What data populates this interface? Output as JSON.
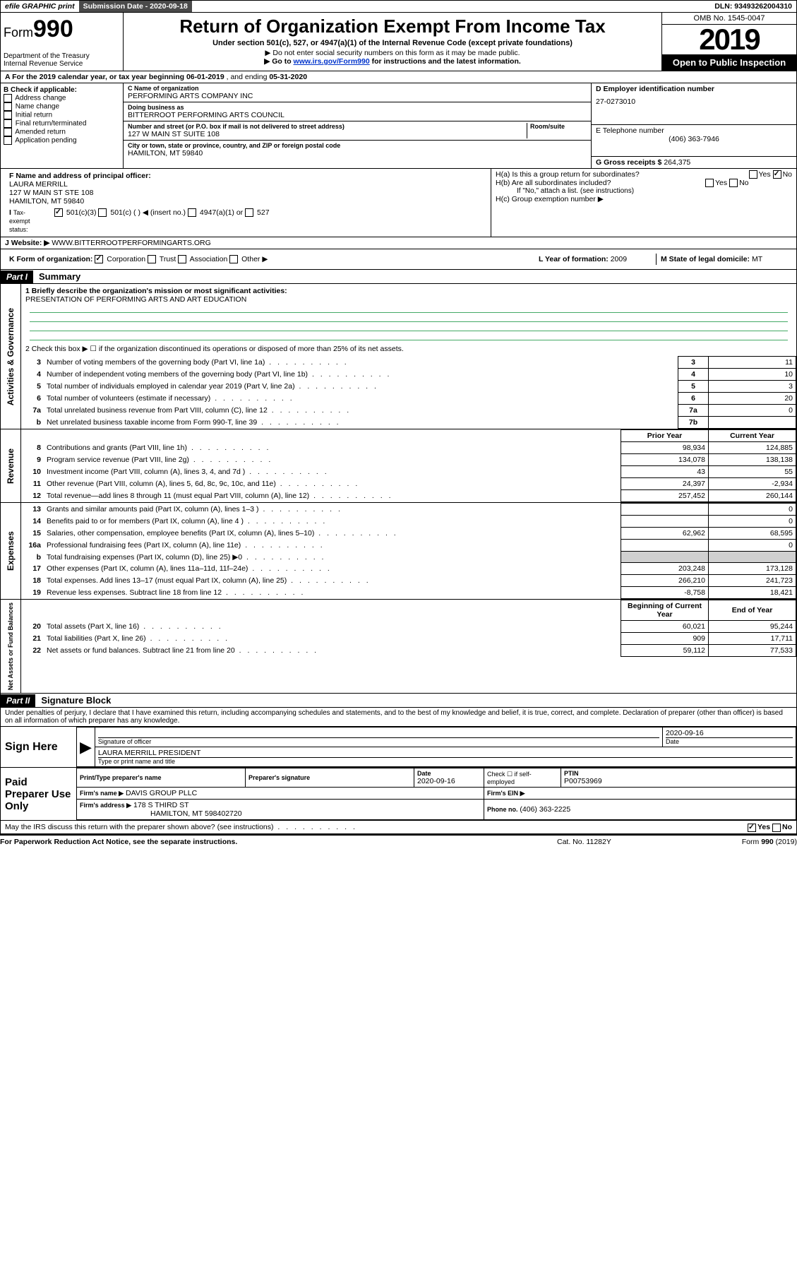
{
  "topbar": {
    "efile": "efile GRAPHIC print",
    "submission_label": "Submission Date - 2020-09-18",
    "dln": "DLN: 93493262004310"
  },
  "header": {
    "form_prefix": "Form",
    "form_num": "990",
    "title": "Return of Organization Exempt From Income Tax",
    "subtitle": "Under section 501(c), 527, or 4947(a)(1) of the Internal Revenue Code (except private foundations)",
    "note1": "▶ Do not enter social security numbers on this form as it may be made public.",
    "note2_pre": "▶ Go to ",
    "note2_link": "www.irs.gov/Form990",
    "note2_post": " for instructions and the latest information.",
    "dept": "Department of the Treasury\nInternal Revenue Service",
    "omb": "OMB No. 1545-0047",
    "year": "2019",
    "open_public": "Open to Public Inspection"
  },
  "row_a": {
    "text_pre": "A   For the 2019 calendar year, or tax year beginning ",
    "begin": "06-01-2019",
    "mid": "   , and ending ",
    "end": "05-31-2020"
  },
  "box_b": {
    "label": "B Check if applicable:",
    "items": [
      "Address change",
      "Name change",
      "Initial return",
      "Final return/terminated",
      "Amended return",
      "Application pending"
    ]
  },
  "box_c": {
    "name_label": "C Name of organization",
    "name": "PERFORMING ARTS COMPANY INC",
    "dba_label": "Doing business as",
    "dba": "BITTERROOT PERFORMING ARTS COUNCIL",
    "addr_label": "Number and street (or P.O. box if mail is not delivered to street address)",
    "room_label": "Room/suite",
    "addr": "127 W MAIN ST SUITE 108",
    "city_label": "City or town, state or province, country, and ZIP or foreign postal code",
    "city": "HAMILTON, MT  59840"
  },
  "box_d": {
    "label": "D Employer identification number",
    "value": "27-0273010"
  },
  "box_e": {
    "label": "E Telephone number",
    "value": "(406) 363-7946"
  },
  "box_g": {
    "label": "G Gross receipts $",
    "value": "264,375"
  },
  "box_f": {
    "label": "F  Name and address of principal officer:",
    "name": "LAURA MERRILL",
    "addr1": "127 W MAIN ST STE 108",
    "addr2": "HAMILTON, MT  59840"
  },
  "box_h": {
    "a": "H(a)  Is this a group return for subordinates?",
    "b": "H(b)  Are all subordinates included?",
    "b_note": "If \"No,\" attach a list. (see instructions)",
    "c": "H(c)  Group exemption number ▶"
  },
  "row_i": {
    "label": "I    Tax-exempt status:",
    "opts": [
      "501(c)(3)",
      "501(c) (  ) ◀ (insert no.)",
      "4947(a)(1) or",
      "527"
    ]
  },
  "row_j": {
    "label": "J   Website: ▶",
    "value": "WWW.BITTERROOTPERFORMINGARTS.ORG"
  },
  "row_k": {
    "label": "K Form of organization:",
    "opts": [
      "Corporation",
      "Trust",
      "Association",
      "Other ▶"
    ],
    "l_label": "L Year of formation:",
    "l_val": "2009",
    "m_label": "M State of legal domicile:",
    "m_val": "MT"
  },
  "part1": {
    "header": "Part I",
    "title": "Summary"
  },
  "summary": {
    "side1": "Activities & Governance",
    "side2": "Revenue",
    "side3": "Expenses",
    "side4": "Net Assets or Fund Balances",
    "line1_label": "1  Briefly describe the organization's mission or most significant activities:",
    "line1_val": "PRESENTATION OF PERFORMING ARTS AND ART EDUCATION",
    "line2": "2   Check this box ▶ ☐  if the organization discontinued its operations or disposed of more than 25% of its net assets.",
    "rows_top": [
      {
        "n": "3",
        "t": "Number of voting members of the governing body (Part VI, line 1a)",
        "box": "3",
        "v": "11"
      },
      {
        "n": "4",
        "t": "Number of independent voting members of the governing body (Part VI, line 1b)",
        "box": "4",
        "v": "10"
      },
      {
        "n": "5",
        "t": "Total number of individuals employed in calendar year 2019 (Part V, line 2a)",
        "box": "5",
        "v": "3"
      },
      {
        "n": "6",
        "t": "Total number of volunteers (estimate if necessary)",
        "box": "6",
        "v": "20"
      },
      {
        "n": "7a",
        "t": "Total unrelated business revenue from Part VIII, column (C), line 12",
        "box": "7a",
        "v": "0"
      },
      {
        "n": "b",
        "t": "Net unrelated business taxable income from Form 990-T, line 39",
        "box": "7b",
        "v": ""
      }
    ],
    "prior_label": "Prior Year",
    "current_label": "Current Year",
    "rows_rev": [
      {
        "n": "8",
        "t": "Contributions and grants (Part VIII, line 1h)",
        "p": "98,934",
        "c": "124,885"
      },
      {
        "n": "9",
        "t": "Program service revenue (Part VIII, line 2g)",
        "p": "134,078",
        "c": "138,138"
      },
      {
        "n": "10",
        "t": "Investment income (Part VIII, column (A), lines 3, 4, and 7d )",
        "p": "43",
        "c": "55"
      },
      {
        "n": "11",
        "t": "Other revenue (Part VIII, column (A), lines 5, 6d, 8c, 9c, 10c, and 11e)",
        "p": "24,397",
        "c": "-2,934"
      },
      {
        "n": "12",
        "t": "Total revenue—add lines 8 through 11 (must equal Part VIII, column (A), line 12)",
        "p": "257,452",
        "c": "260,144"
      }
    ],
    "rows_exp": [
      {
        "n": "13",
        "t": "Grants and similar amounts paid (Part IX, column (A), lines 1–3 )",
        "p": "",
        "c": "0"
      },
      {
        "n": "14",
        "t": "Benefits paid to or for members (Part IX, column (A), line 4 )",
        "p": "",
        "c": "0"
      },
      {
        "n": "15",
        "t": "Salaries, other compensation, employee benefits (Part IX, column (A), lines 5–10)",
        "p": "62,962",
        "c": "68,595"
      },
      {
        "n": "16a",
        "t": "Professional fundraising fees (Part IX, column (A), line 11e)",
        "p": "",
        "c": "0"
      },
      {
        "n": "b",
        "t": "Total fundraising expenses (Part IX, column (D), line 25) ▶0",
        "p": "shaded",
        "c": "shaded"
      },
      {
        "n": "17",
        "t": "Other expenses (Part IX, column (A), lines 11a–11d, 11f–24e)",
        "p": "203,248",
        "c": "173,128"
      },
      {
        "n": "18",
        "t": "Total expenses. Add lines 13–17 (must equal Part IX, column (A), line 25)",
        "p": "266,210",
        "c": "241,723"
      },
      {
        "n": "19",
        "t": "Revenue less expenses. Subtract line 18 from line 12",
        "p": "-8,758",
        "c": "18,421"
      }
    ],
    "begin_label": "Beginning of Current Year",
    "end_label": "End of Year",
    "rows_net": [
      {
        "n": "20",
        "t": "Total assets (Part X, line 16)",
        "p": "60,021",
        "c": "95,244"
      },
      {
        "n": "21",
        "t": "Total liabilities (Part X, line 26)",
        "p": "909",
        "c": "17,711"
      },
      {
        "n": "22",
        "t": "Net assets or fund balances. Subtract line 21 from line 20",
        "p": "59,112",
        "c": "77,533"
      }
    ]
  },
  "part2": {
    "header": "Part II",
    "title": "Signature Block"
  },
  "perjury": "Under penalties of perjury, I declare that I have examined this return, including accompanying schedules and statements, and to the best of my knowledge and belief, it is true, correct, and complete. Declaration of preparer (other than officer) is based on all information of which preparer has any knowledge.",
  "sign": {
    "left": "Sign Here",
    "sig_label": "Signature of officer",
    "date_val": "2020-09-16",
    "date_label": "Date",
    "name_val": "LAURA MERRILL  PRESIDENT",
    "name_label": "Type or print name and title"
  },
  "paid": {
    "left": "Paid Preparer Use Only",
    "h1": "Print/Type preparer's name",
    "h2": "Preparer's signature",
    "h3": "Date",
    "h3v": "2020-09-16",
    "h4": "Check ☐ if self-employed",
    "h5": "PTIN",
    "h5v": "P00753969",
    "firm_name_l": "Firm's name    ▶",
    "firm_name": "DAVIS GROUP PLLC",
    "firm_ein_l": "Firm's EIN ▶",
    "firm_addr_l": "Firm's address ▶",
    "firm_addr": "178 S THIRD ST",
    "firm_addr2": "HAMILTON, MT  598402720",
    "phone_l": "Phone no.",
    "phone": "(406) 363-2225"
  },
  "discuss": "May the IRS discuss this return with the preparer shown above? (see instructions)",
  "footer": {
    "left": "For Paperwork Reduction Act Notice, see the separate instructions.",
    "mid": "Cat. No. 11282Y",
    "right": "Form 990 (2019)"
  },
  "yes": "Yes",
  "no": "No"
}
